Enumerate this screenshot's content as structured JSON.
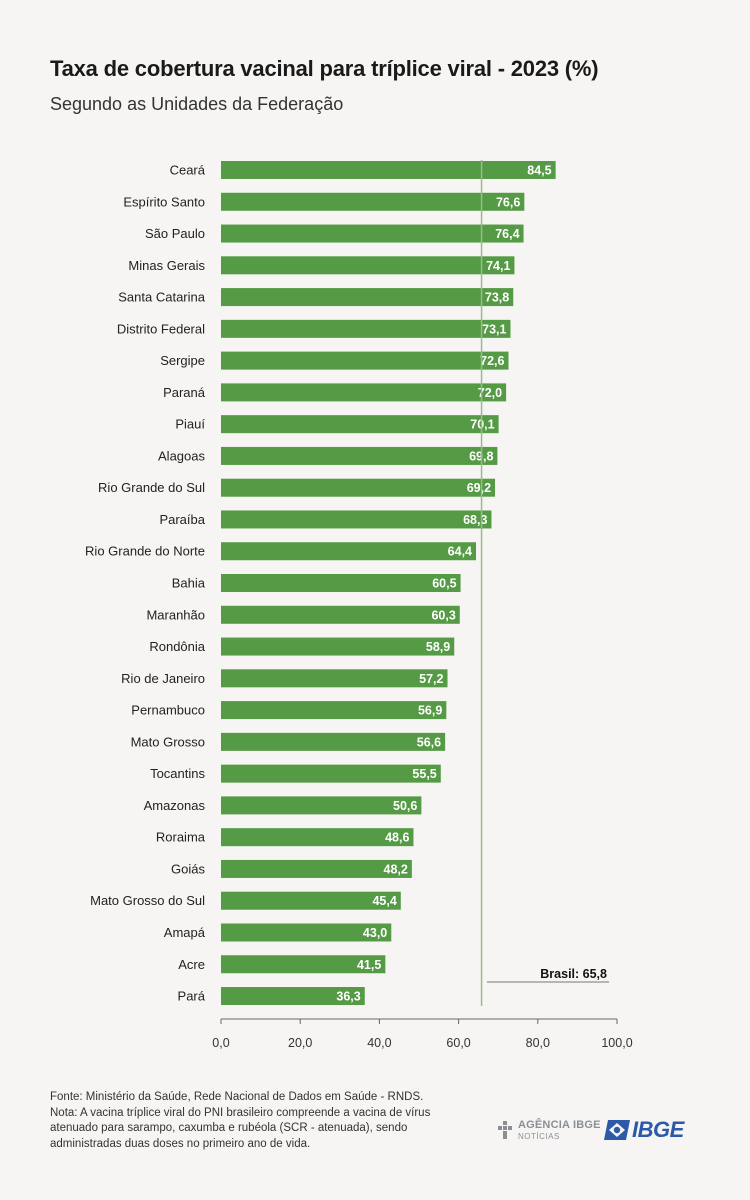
{
  "title": "Taxa de cobertura vacinal para tríplice viral - 2023 (%)",
  "subtitle": "Segundo as Unidades da Federação",
  "colors": {
    "bar": "#559a45",
    "reference_line": "#9bbb8f",
    "axis": "#666666",
    "background": "#f6f5f3"
  },
  "chart_data": {
    "type": "bar",
    "orientation": "horizontal",
    "categories": [
      "Ceará",
      "Espírito Santo",
      "São Paulo",
      "Minas Gerais",
      "Santa Catarina",
      "Distrito Federal",
      "Sergipe",
      "Paraná",
      "Piauí",
      "Alagoas",
      "Rio Grande do Sul",
      "Paraíba",
      "Rio Grande do Norte",
      "Bahia",
      "Maranhão",
      "Rondônia",
      "Rio de Janeiro",
      "Pernambuco",
      "Mato Grosso",
      "Tocantins",
      "Amazonas",
      "Roraima",
      "Goiás",
      "Mato Grosso do Sul",
      "Amapá",
      "Acre",
      "Pará"
    ],
    "values": [
      84.5,
      76.6,
      76.4,
      74.1,
      73.8,
      73.1,
      72.6,
      72.0,
      70.1,
      69.8,
      69.2,
      68.3,
      64.4,
      60.5,
      60.3,
      58.9,
      57.2,
      56.9,
      56.6,
      55.5,
      50.6,
      48.6,
      48.2,
      45.4,
      43.0,
      41.5,
      36.3
    ],
    "value_labels": [
      "84,5",
      "76,6",
      "76,4",
      "74,1",
      "73,8",
      "73,1",
      "72,6",
      "72,0",
      "70,1",
      "69,8",
      "69,2",
      "68,3",
      "64,4",
      "60,5",
      "60,3",
      "58,9",
      "57,2",
      "56,9",
      "56,6",
      "55,5",
      "50,6",
      "48,6",
      "48,2",
      "45,4",
      "43,0",
      "41,5",
      "36,3"
    ],
    "xlim": [
      0,
      100
    ],
    "xticks": [
      0,
      20,
      40,
      60,
      80,
      100
    ],
    "xtick_labels": [
      "0,0",
      "20,0",
      "40,0",
      "60,0",
      "80,0",
      "100,0"
    ],
    "reference": {
      "value": 65.8,
      "label": "Brasil: 65,8"
    },
    "grid": false,
    "xlabel": "",
    "ylabel": ""
  },
  "footer": {
    "source": "Fonte: Ministério da Saúde, Rede Nacional de Dados em Saúde - RNDS.",
    "note": "Nota: A vacina tríplice viral do PNI brasileiro compreende a vacina de vírus atenuado para sarampo, caxumba e rubéola (SCR - atenuada), sendo administradas duas doses no primeiro ano de vida."
  },
  "logos": {
    "agencia": "AGÊNCIA IBGE",
    "agencia_sub": "NOTÍCIAS",
    "ibge": "IBGE",
    "agencia_icon": "agencia-ibge-logo-icon",
    "ibge_icon": "ibge-flag-logo-icon"
  }
}
